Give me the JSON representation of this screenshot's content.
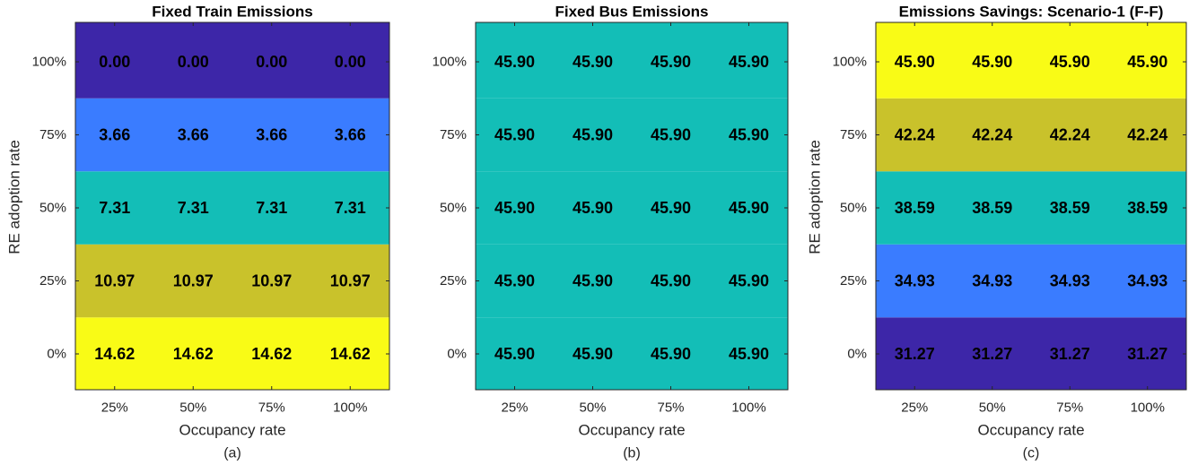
{
  "colors": {
    "level_0": "#3d26a8",
    "level_1": "#3a7cff",
    "level_2": "#13beb7",
    "level_3": "#c9c22b",
    "level_4": "#f9fb16"
  },
  "chart_data": [
    {
      "type": "heatmap",
      "title": "Fixed Train Emissions",
      "xlabel": "Occupancy rate",
      "ylabel": "RE adoption rate",
      "panel_label": "(a)",
      "x_categories": [
        "25%",
        "50%",
        "75%",
        "100%"
      ],
      "y_categories": [
        "0%",
        "25%",
        "50%",
        "75%",
        "100%"
      ],
      "values": [
        [
          14.62,
          14.62,
          14.62,
          14.62
        ],
        [
          10.97,
          10.97,
          10.97,
          10.97
        ],
        [
          7.31,
          7.31,
          7.31,
          7.31
        ],
        [
          3.66,
          3.66,
          3.66,
          3.66
        ],
        [
          0.0,
          0.0,
          0.0,
          0.0
        ]
      ],
      "labels": [
        [
          "14.62",
          "14.62",
          "14.62",
          "14.62"
        ],
        [
          "10.97",
          "10.97",
          "10.97",
          "10.97"
        ],
        [
          "7.31",
          "7.31",
          "7.31",
          "7.31"
        ],
        [
          "3.66",
          "3.66",
          "3.66",
          "3.66"
        ],
        [
          "0.00",
          "0.00",
          "0.00",
          "0.00"
        ]
      ],
      "row_color_levels": [
        4,
        3,
        2,
        1,
        0
      ]
    },
    {
      "type": "heatmap",
      "title": "Fixed Bus Emissions",
      "xlabel": "Occupancy rate",
      "ylabel": "",
      "panel_label": "(b)",
      "x_categories": [
        "25%",
        "50%",
        "75%",
        "100%"
      ],
      "y_categories": [
        "0%",
        "25%",
        "50%",
        "75%",
        "100%"
      ],
      "values": [
        [
          45.9,
          45.9,
          45.9,
          45.9
        ],
        [
          45.9,
          45.9,
          45.9,
          45.9
        ],
        [
          45.9,
          45.9,
          45.9,
          45.9
        ],
        [
          45.9,
          45.9,
          45.9,
          45.9
        ],
        [
          45.9,
          45.9,
          45.9,
          45.9
        ]
      ],
      "labels": [
        [
          "45.90",
          "45.90",
          "45.90",
          "45.90"
        ],
        [
          "45.90",
          "45.90",
          "45.90",
          "45.90"
        ],
        [
          "45.90",
          "45.90",
          "45.90",
          "45.90"
        ],
        [
          "45.90",
          "45.90",
          "45.90",
          "45.90"
        ],
        [
          "45.90",
          "45.90",
          "45.90",
          "45.90"
        ]
      ],
      "row_color_levels": [
        2,
        2,
        2,
        2,
        2
      ]
    },
    {
      "type": "heatmap",
      "title": "Emissions Savings: Scenario-1 (F-F)",
      "xlabel": "Occupancy rate",
      "ylabel": "RE adoption rate",
      "panel_label": "(c)",
      "x_categories": [
        "25%",
        "50%",
        "75%",
        "100%"
      ],
      "y_categories": [
        "0%",
        "25%",
        "50%",
        "75%",
        "100%"
      ],
      "values": [
        [
          31.27,
          31.27,
          31.27,
          31.27
        ],
        [
          34.93,
          34.93,
          34.93,
          34.93
        ],
        [
          38.59,
          38.59,
          38.59,
          38.59
        ],
        [
          42.24,
          42.24,
          42.24,
          42.24
        ],
        [
          45.9,
          45.9,
          45.9,
          45.9
        ]
      ],
      "labels": [
        [
          "31.27",
          "31.27",
          "31.27",
          "31.27"
        ],
        [
          "34.93",
          "34.93",
          "34.93",
          "34.93"
        ],
        [
          "38.59",
          "38.59",
          "38.59",
          "38.59"
        ],
        [
          "42.24",
          "42.24",
          "42.24",
          "42.24"
        ],
        [
          "45.90",
          "45.90",
          "45.90",
          "45.90"
        ]
      ],
      "row_color_levels": [
        0,
        1,
        2,
        3,
        4
      ]
    }
  ]
}
